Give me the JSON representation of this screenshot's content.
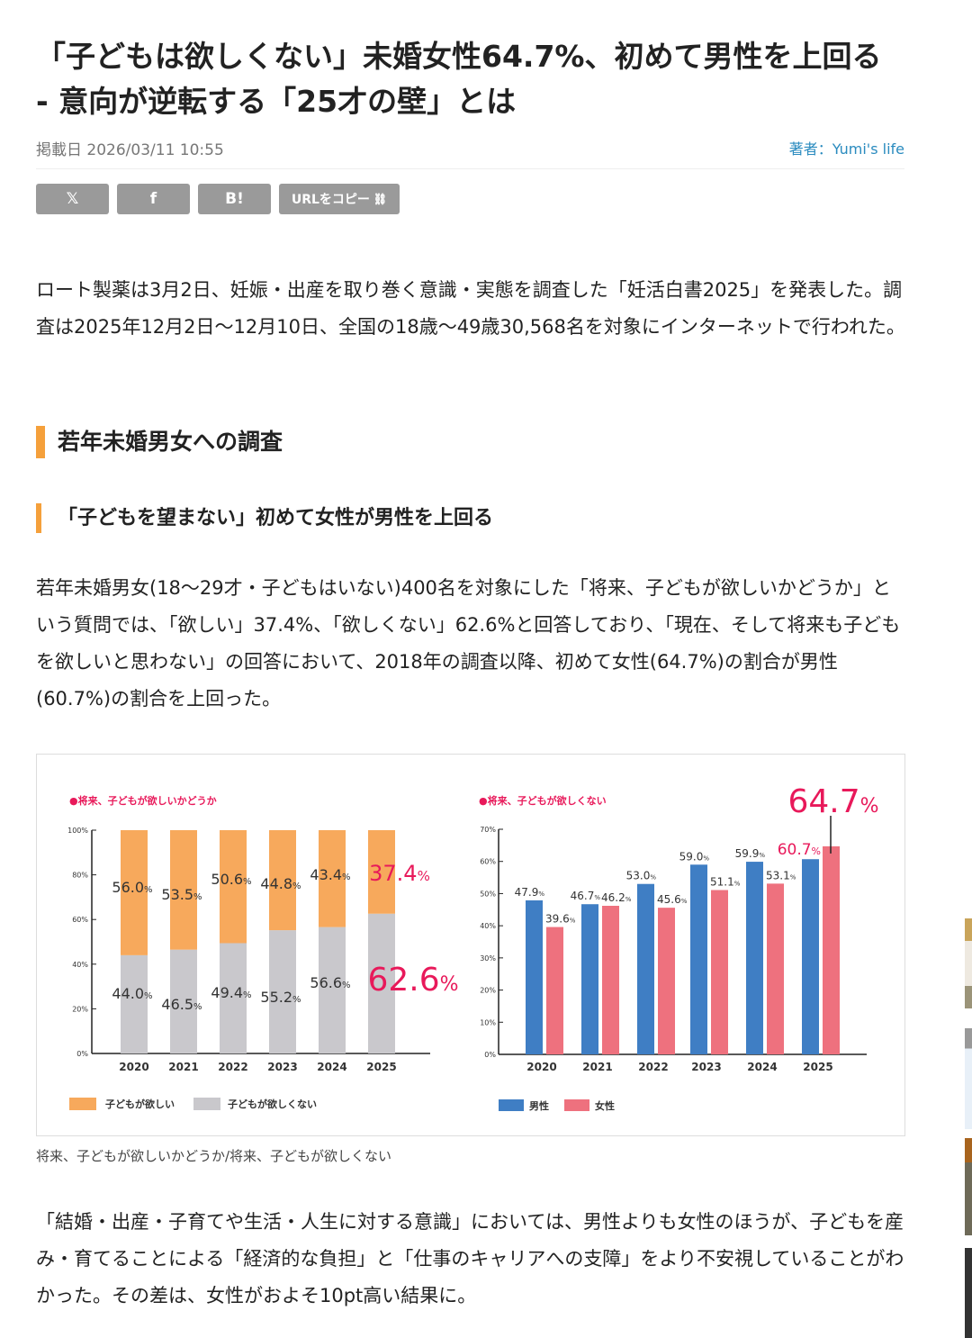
{
  "article": {
    "title": "「子どもは欲しくない」未婚女性64.7%、初めて男性を上回る - 意向が逆転する「25才の壁」とは",
    "date": "掲載日 2026/03/11 10:55",
    "author": "著者：Yumi's life"
  },
  "share": {
    "x": "𝕏",
    "facebook": "f",
    "hatena": "B!",
    "copy_url": "URLをコピー",
    "link_icon": "🔗"
  },
  "body": {
    "p1": "ロート製薬は3月2日、妊娠・出産を取り巻く意識・実態を調査した「妊活白書2025」を発表した。調査は2025年12月2日〜12月10日、全国の18歳〜49歳30,568名を対象にインターネットで行われた。",
    "h2": "若年未婚男女への調査",
    "h3": "「子どもを望まない」初めて女性が男性を上回る",
    "p2": "若年未婚男女(18〜29才・子どもはいない)400名を対象にした「将来、子どもが欲しいかどうか」という質問では、「欲しい」37.4%、「欲しくない」62.6%と回答しており、「現在、そして将来も子どもを欲しいと思わない」の回答において、2018年の調査以降、初めて女性(64.7%)の割合が男性(60.7%)の割合を上回った。",
    "caption": "将来、子どもが欲しいかどうか/将来、子どもが欲しくない",
    "p3": "「結婚・出産・子育てや生活・人生に対する意識」においては、男性よりも女性のほうが、子どもを産み・育てることによる「経済的な負担」と「仕事のキャリアへの支障」をより不安視していることがわかった。その差は、女性がおよそ10pt高い結果に。"
  },
  "chart_data": [
    {
      "type": "bar",
      "stacked": true,
      "title": "●将来、子どもが欲しいかどうか",
      "categories": [
        "2020",
        "2021",
        "2022",
        "2023",
        "2024",
        "2025"
      ],
      "yticks": [
        "0%",
        "20%",
        "40%",
        "60%",
        "80%",
        "100%"
      ],
      "ylim": [
        0,
        100
      ],
      "series": [
        {
          "name": "子どもが欲しくない",
          "color": "#c9c8cc",
          "values": [
            44.0,
            46.5,
            49.4,
            55.2,
            56.6,
            62.6
          ]
        },
        {
          "name": "子どもが欲しい",
          "color": "#f7a95c",
          "values": [
            56.0,
            53.5,
            50.6,
            44.8,
            43.4,
            37.4
          ]
        }
      ],
      "highlight": "#e8195a"
    },
    {
      "type": "bar",
      "stacked": false,
      "title": "●将来、子どもが欲しくない",
      "categories": [
        "2020",
        "2021",
        "2022",
        "2023",
        "2024",
        "2025"
      ],
      "yticks": [
        "0%",
        "10%",
        "20%",
        "30%",
        "40%",
        "50%",
        "60%",
        "70%"
      ],
      "ylim": [
        0,
        70
      ],
      "series": [
        {
          "name": "男性",
          "color": "#3f7ec4",
          "values": [
            47.9,
            46.7,
            53.0,
            59.0,
            59.9,
            60.7
          ]
        },
        {
          "name": "女性",
          "color": "#ee717e",
          "values": [
            39.6,
            46.2,
            45.6,
            51.1,
            53.1,
            64.7
          ]
        }
      ],
      "highlight": "#e8195a"
    }
  ]
}
